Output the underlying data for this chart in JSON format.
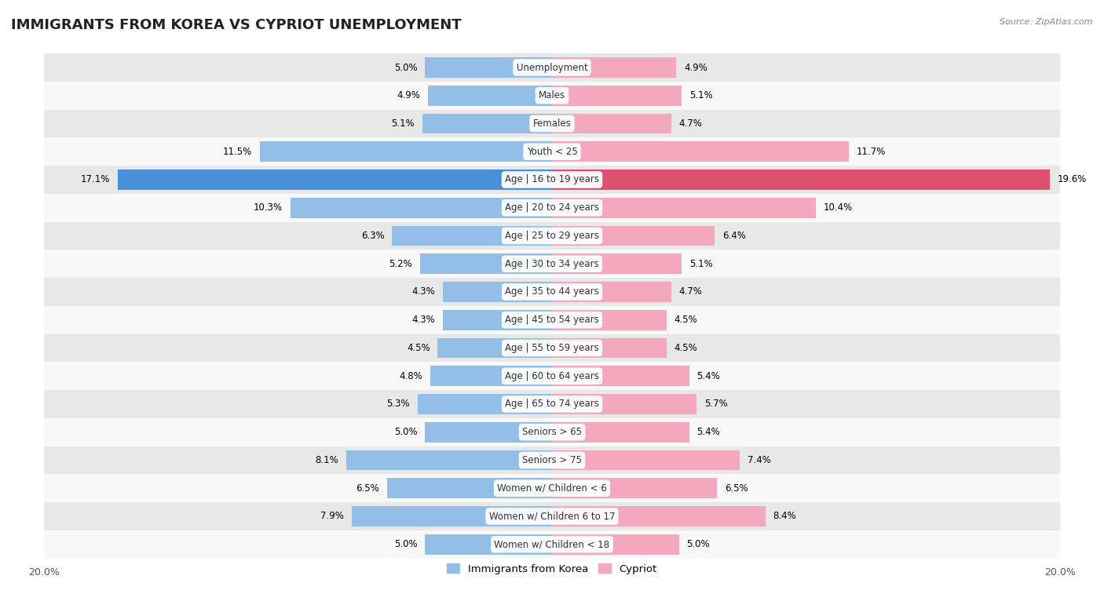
{
  "title": "IMMIGRANTS FROM KOREA VS CYPRIOT UNEMPLOYMENT",
  "source": "Source: ZipAtlas.com",
  "categories": [
    "Unemployment",
    "Males",
    "Females",
    "Youth < 25",
    "Age | 16 to 19 years",
    "Age | 20 to 24 years",
    "Age | 25 to 29 years",
    "Age | 30 to 34 years",
    "Age | 35 to 44 years",
    "Age | 45 to 54 years",
    "Age | 55 to 59 years",
    "Age | 60 to 64 years",
    "Age | 65 to 74 years",
    "Seniors > 65",
    "Seniors > 75",
    "Women w/ Children < 6",
    "Women w/ Children 6 to 17",
    "Women w/ Children < 18"
  ],
  "korea_values": [
    5.0,
    4.9,
    5.1,
    11.5,
    17.1,
    10.3,
    6.3,
    5.2,
    4.3,
    4.3,
    4.5,
    4.8,
    5.3,
    5.0,
    8.1,
    6.5,
    7.9,
    5.0
  ],
  "cypriot_values": [
    4.9,
    5.1,
    4.7,
    11.7,
    19.6,
    10.4,
    6.4,
    5.1,
    4.7,
    4.5,
    4.5,
    5.4,
    5.7,
    5.4,
    7.4,
    6.5,
    8.4,
    5.0
  ],
  "korea_color": "#92bee8",
  "cypriot_color": "#f4a8be",
  "highlight_korea_color": "#4a90d9",
  "highlight_cypriot_color": "#e05070",
  "highlight_row": 4,
  "xlim": 20.0,
  "bg_color_odd": "#e8e8e8",
  "bg_color_even": "#f8f8f8",
  "legend_korea": "Immigrants from Korea",
  "legend_cypriot": "Cypriot",
  "title_fontsize": 13,
  "label_fontsize": 8.5,
  "axis_fontsize": 9
}
